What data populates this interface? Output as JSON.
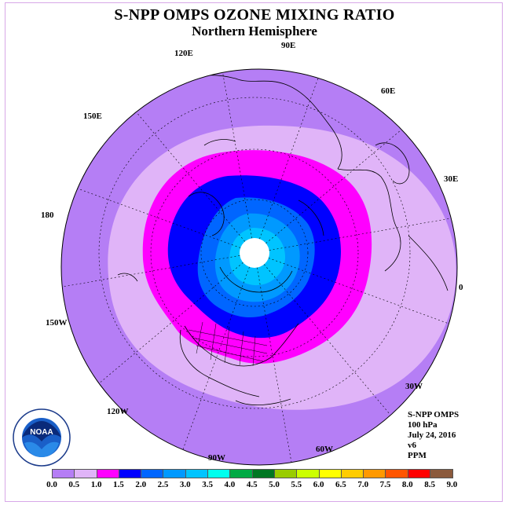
{
  "title": "S-NPP OMPS OZONE MIXING RATIO",
  "subtitle": "Northern Hemisphere",
  "longitude_labels": [
    "90E",
    "60E",
    "30E",
    "0",
    "30W",
    "60W",
    "90W",
    "120W",
    "150W",
    "180",
    "150E",
    "120E"
  ],
  "info": {
    "instrument": "S-NPP OMPS",
    "pressure": "100 hPa",
    "date": "July 24, 2016",
    "version": "v6",
    "units": "PPM"
  },
  "colorbar": {
    "ticks": [
      "0.0",
      "0.5",
      "1.0",
      "1.5",
      "2.0",
      "2.5",
      "3.0",
      "3.5",
      "4.0",
      "4.5",
      "5.0",
      "5.5",
      "6.0",
      "6.5",
      "7.0",
      "7.5",
      "8.0",
      "8.5",
      "9.0"
    ],
    "colors": [
      "#b57ef5",
      "#e0b4f8",
      "#ff00ff",
      "#0000ff",
      "#0066ff",
      "#0099ff",
      "#00c4ff",
      "#00ffee",
      "#00aa44",
      "#007722",
      "#99cc00",
      "#ccff00",
      "#ffff00",
      "#ffcc00",
      "#ff9900",
      "#ff5500",
      "#ff0000",
      "#8b5a3c"
    ]
  },
  "logo": "noaa-logo",
  "logo_text": "NOAA"
}
